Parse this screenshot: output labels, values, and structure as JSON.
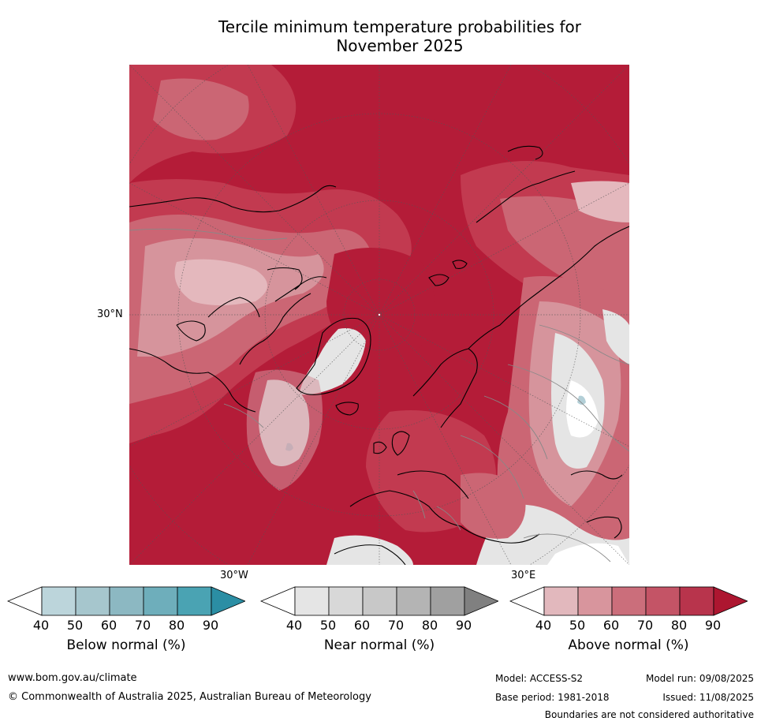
{
  "title_line1": "Tercile minimum temperature probabilities for",
  "title_line2": "November 2025",
  "map": {
    "lat_label": "30°N",
    "lon_labels": [
      "30°W",
      "30°E"
    ],
    "colors": {
      "very_high": "#b41c38",
      "high": "#c23a50",
      "mid": "#cb6674",
      "low": "#d6949c",
      "vlow": "#e4b8bd",
      "near_light": "#e5e5e5",
      "below_light": "#b3cfd7"
    }
  },
  "colorbars": [
    {
      "label": "Below normal (%)",
      "ticks": [
        "40",
        "50",
        "60",
        "70",
        "80",
        "90"
      ],
      "colors": [
        "#ffffff",
        "#bcd5db",
        "#a6c6cd",
        "#8cb8c2",
        "#6eaebb",
        "#4aa3b3",
        "#2b8ea4"
      ]
    },
    {
      "label": "Near normal (%)",
      "ticks": [
        "40",
        "50",
        "60",
        "70",
        "80",
        "90"
      ],
      "colors": [
        "#ffffff",
        "#e5e5e5",
        "#d8d8d8",
        "#c8c8c8",
        "#b4b4b4",
        "#a0a0a0",
        "#808080"
      ]
    },
    {
      "label": "Above normal (%)",
      "ticks": [
        "40",
        "50",
        "60",
        "70",
        "80",
        "90"
      ],
      "colors": [
        "#ffffff",
        "#e2b8bd",
        "#d8959d",
        "#cb6e7b",
        "#c45466",
        "#b8344c",
        "#ad1630"
      ]
    }
  ],
  "footer": {
    "website": "www.bom.gov.au/climate",
    "copyright": "© Commonwealth of Australia 2025, Australian Bureau of Meteorology",
    "model": "Model: ACCESS-S2",
    "base_period": "Base period: 1981-2018",
    "model_run": "Model run: 09/08/2025",
    "issued": "Issued: 11/08/2025",
    "disclaimer": "Boundaries are not considered authoritative"
  }
}
